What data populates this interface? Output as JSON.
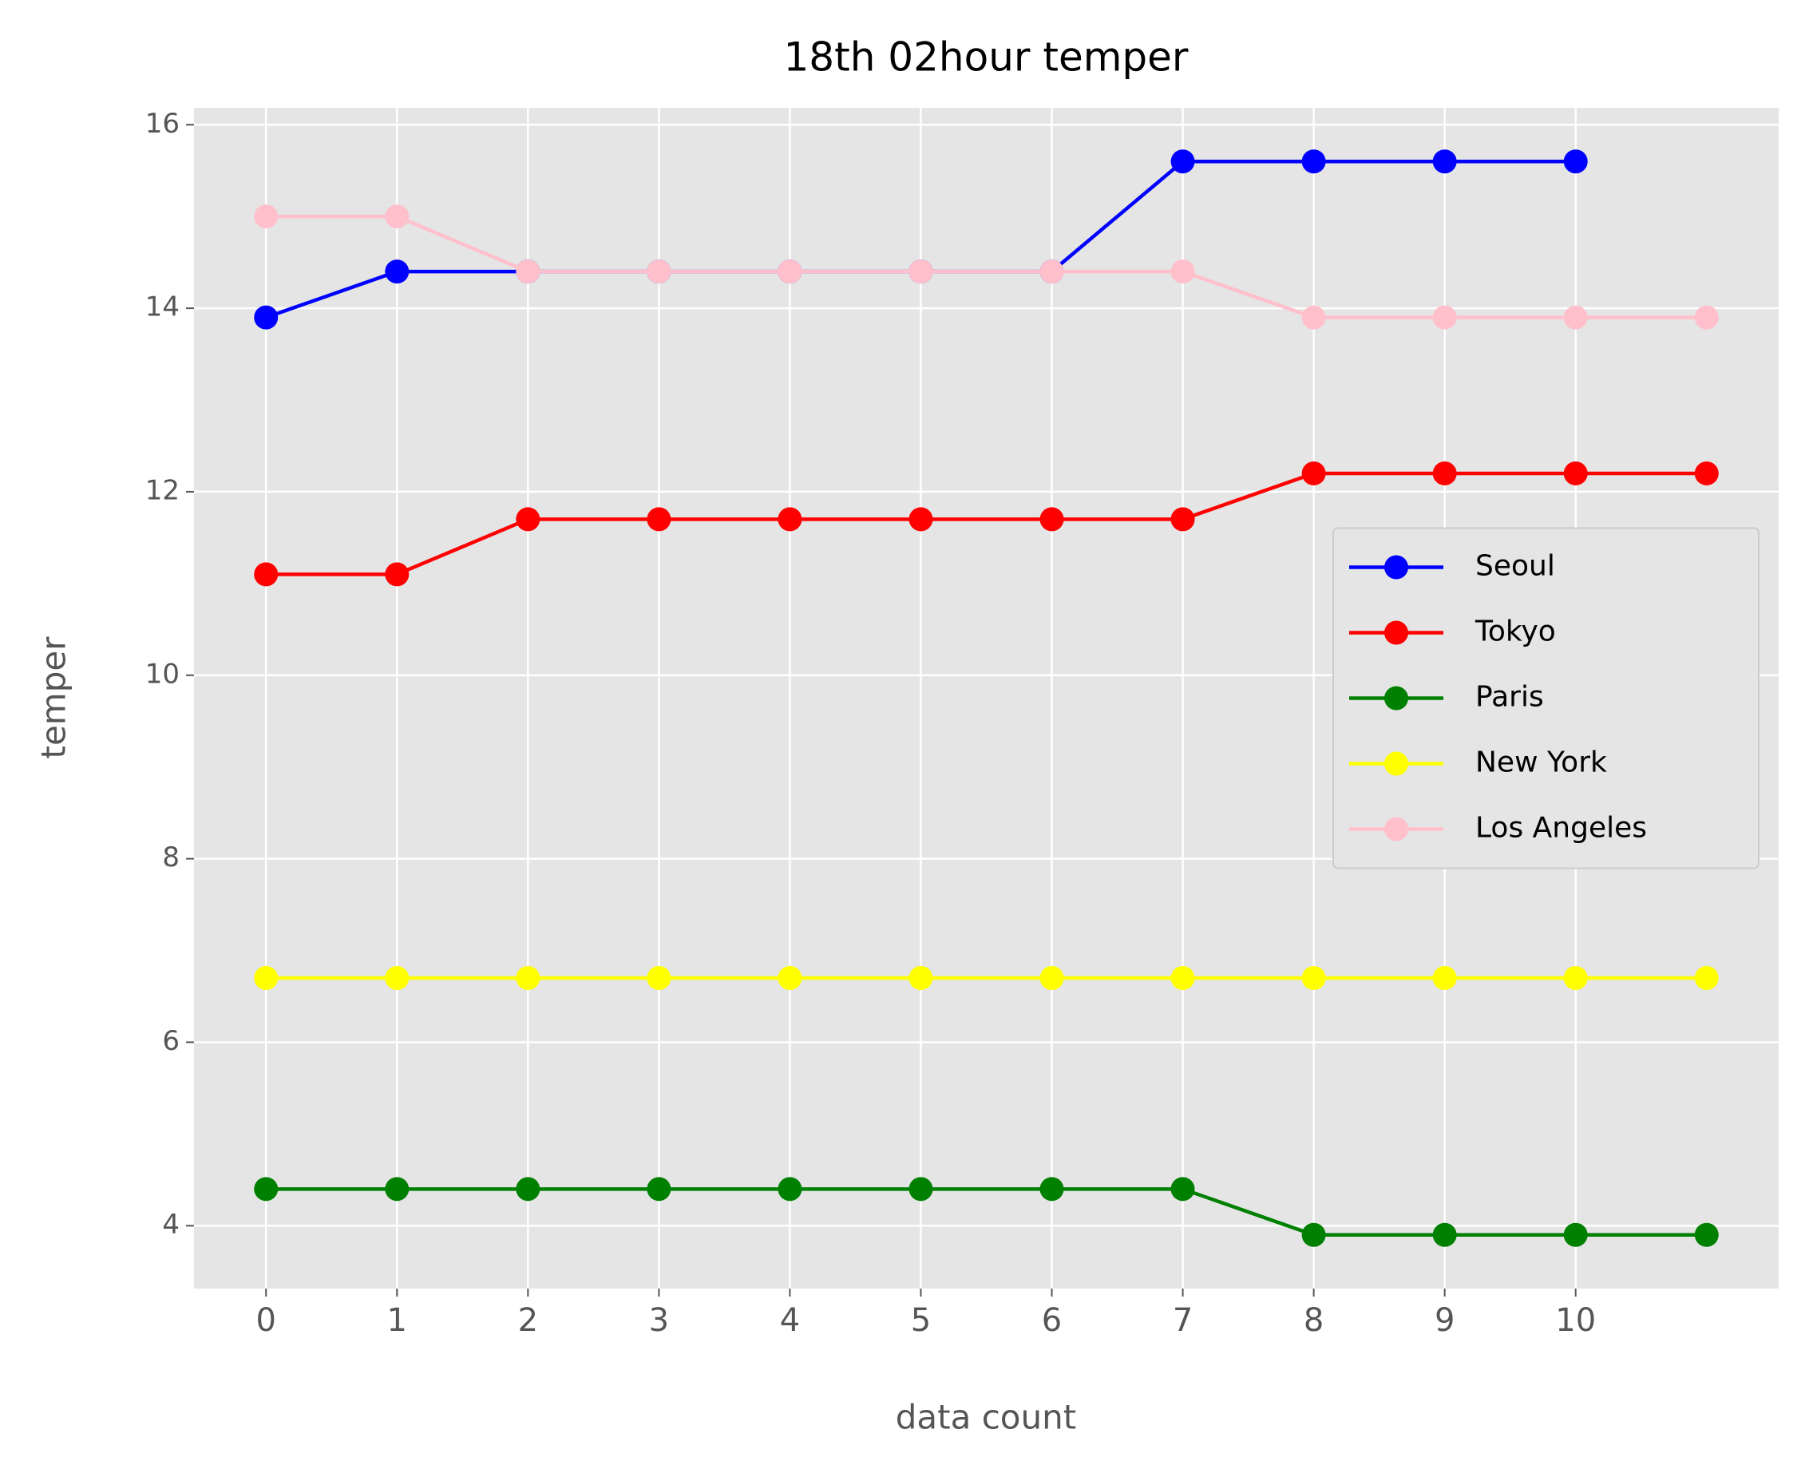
{
  "chart_data": {
    "type": "line",
    "title": "18th 02hour temper",
    "x_label": "data count",
    "y_label": "temper",
    "x": [
      0,
      1,
      2,
      3,
      4,
      5,
      6,
      7,
      8,
      9,
      10,
      11
    ],
    "series": [
      {
        "name": "Seoul",
        "color": "#0000ff",
        "values": [
          13.9,
          14.4,
          14.4,
          14.4,
          14.4,
          14.4,
          14.4,
          15.6,
          15.6,
          15.6,
          15.6,
          null
        ]
      },
      {
        "name": "Tokyo",
        "color": "#ff0000",
        "values": [
          11.1,
          11.1,
          11.7,
          11.7,
          11.7,
          11.7,
          11.7,
          11.7,
          12.2,
          12.2,
          12.2,
          12.2
        ]
      },
      {
        "name": "Paris",
        "color": "#008000",
        "values": [
          4.4,
          4.4,
          4.4,
          4.4,
          4.4,
          4.4,
          4.4,
          4.4,
          3.9,
          3.9,
          3.9,
          3.9
        ]
      },
      {
        "name": "New York",
        "color": "#ffff00",
        "values": [
          6.7,
          6.7,
          6.7,
          6.7,
          6.7,
          6.7,
          6.7,
          6.7,
          6.7,
          6.7,
          6.7,
          6.7
        ]
      },
      {
        "name": "Los Angeles",
        "color": "#ffc0cb",
        "values": [
          15,
          15,
          14.4,
          14.4,
          14.4,
          14.4,
          14.4,
          14.4,
          13.9,
          13.9,
          13.9,
          13.9
        ]
      }
    ],
    "xlim": [
      -0.55,
      11.55
    ],
    "xticks": [
      0,
      1,
      2,
      3,
      4,
      5,
      6,
      7,
      8,
      9,
      10
    ],
    "ylim": [
      3.315,
      16.185
    ],
    "yticks": [
      4,
      6,
      8,
      10,
      12,
      14,
      16
    ],
    "grid": true,
    "legend": "center right"
  }
}
